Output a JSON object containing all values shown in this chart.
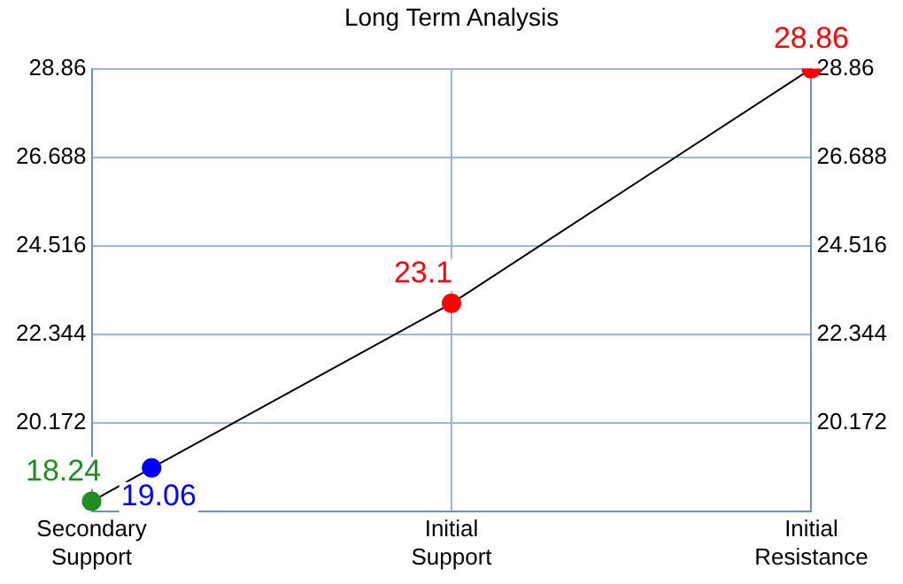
{
  "chart_data": {
    "type": "line",
    "title": "Long Term Analysis",
    "categories": [
      "Secondary Support",
      null,
      null,
      null,
      null,
      null,
      "Initial Support",
      null,
      null,
      null,
      null,
      null,
      "Initial Resistance"
    ],
    "values": [
      18.24,
      19.06,
      null,
      null,
      null,
      null,
      23.1,
      null,
      null,
      null,
      null,
      null,
      28.86
    ],
    "color": "#000000",
    "colors": [
      "#228b22",
      "#0000ff",
      null,
      null,
      null,
      null,
      "#ff0000",
      null,
      null,
      null,
      null,
      null,
      "#ff0000"
    ],
    "ylim": [
      18,
      28.86
    ],
    "yticks": [
      20.172,
      22.344,
      24.516,
      26.688,
      28.86
    ],
    "y2lim": [
      18,
      28.86
    ],
    "y2ticks": [
      20.172,
      22.344,
      24.516,
      26.688,
      28.86
    ],
    "marker": "circle",
    "grid": true,
    "data_labels": true
  }
}
